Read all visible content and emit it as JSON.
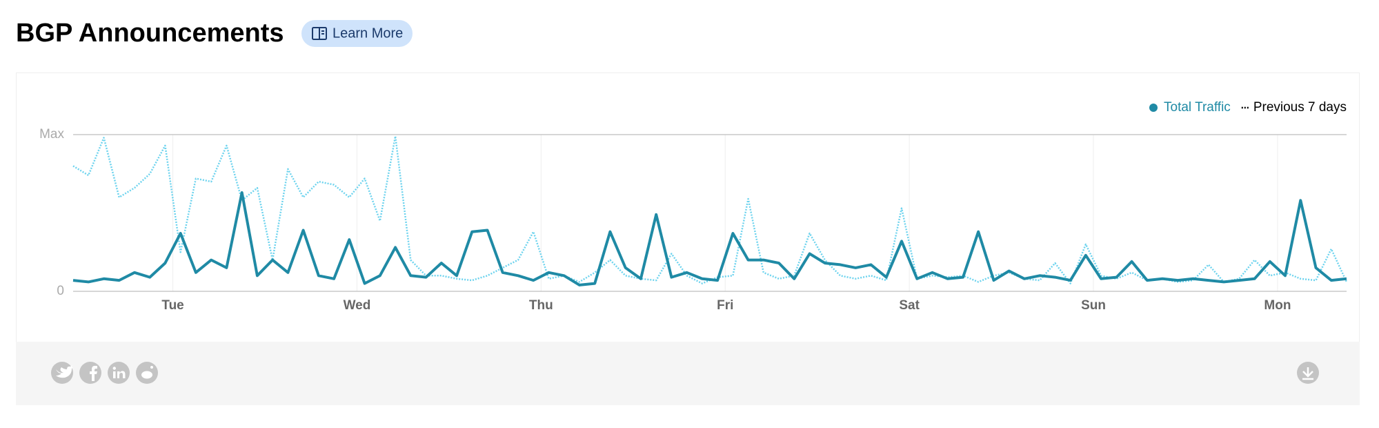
{
  "header": {
    "title": "BGP Announcements",
    "button": "Learn More"
  },
  "chart_data": {
    "type": "line",
    "x": [
      -13,
      -11,
      -9,
      -7,
      -5,
      -3,
      -1,
      1,
      3,
      5,
      7,
      9,
      11,
      13,
      15,
      17,
      19,
      21,
      23,
      25,
      27,
      29,
      31,
      33,
      35,
      37,
      39,
      41,
      43,
      45,
      47,
      49,
      51,
      53,
      55,
      57,
      59,
      61,
      63,
      65,
      67,
      69,
      71,
      73,
      75,
      77,
      79,
      81,
      83,
      85,
      87,
      89,
      91,
      93,
      95,
      97,
      99,
      101,
      103,
      105,
      107,
      109,
      111,
      113,
      115,
      117,
      119,
      121,
      123,
      125,
      127,
      129,
      131,
      133,
      135,
      137,
      139,
      141,
      143,
      145,
      147,
      149,
      151,
      153
    ],
    "xlim": [
      -13,
      153
    ],
    "xticks": [
      {
        "value": 0,
        "label": "Tue"
      },
      {
        "value": 24,
        "label": "Wed"
      },
      {
        "value": 48,
        "label": "Thu"
      },
      {
        "value": 72,
        "label": "Fri"
      },
      {
        "value": 96,
        "label": "Sat"
      },
      {
        "value": 120,
        "label": "Sun"
      },
      {
        "value": 144,
        "label": "Mon"
      }
    ],
    "ylim": [
      0,
      1
    ],
    "yticks": [
      0,
      {
        "value": 1,
        "label": "Max"
      }
    ],
    "grid": true,
    "legend": "top-right",
    "series": [
      {
        "name": "Total Traffic",
        "color": "#1f8aa5",
        "line_style": "solid",
        "values": [
          0.07,
          0.06,
          0.08,
          0.07,
          0.12,
          0.09,
          0.18,
          0.37,
          0.12,
          0.2,
          0.15,
          0.63,
          0.1,
          0.2,
          0.12,
          0.39,
          0.1,
          0.08,
          0.33,
          0.05,
          0.1,
          0.28,
          0.1,
          0.09,
          0.18,
          0.1,
          0.38,
          0.39,
          0.12,
          0.1,
          0.07,
          0.12,
          0.1,
          0.04,
          0.05,
          0.38,
          0.15,
          0.08,
          0.49,
          0.09,
          0.12,
          0.08,
          0.07,
          0.37,
          0.2,
          0.2,
          0.18,
          0.08,
          0.24,
          0.18,
          0.17,
          0.15,
          0.17,
          0.09,
          0.32,
          0.08,
          0.12,
          0.08,
          0.09,
          0.38,
          0.07,
          0.13,
          0.08,
          0.1,
          0.09,
          0.07,
          0.23,
          0.08,
          0.09,
          0.19,
          0.07,
          0.08,
          0.07,
          0.08,
          0.07,
          0.06,
          0.07,
          0.08,
          0.19,
          0.1,
          0.58,
          0.15,
          0.07,
          0.08
        ]
      },
      {
        "name": "Previous 7 days",
        "color": "#6dd3ee",
        "line_style": "dotted",
        "values": [
          0.8,
          0.74,
          0.98,
          0.6,
          0.66,
          0.75,
          0.93,
          0.25,
          0.72,
          0.7,
          0.93,
          0.58,
          0.66,
          0.2,
          0.78,
          0.6,
          0.7,
          0.68,
          0.6,
          0.72,
          0.45,
          0.99,
          0.2,
          0.1,
          0.1,
          0.08,
          0.07,
          0.1,
          0.15,
          0.2,
          0.38,
          0.08,
          0.1,
          0.06,
          0.12,
          0.2,
          0.1,
          0.08,
          0.07,
          0.24,
          0.1,
          0.05,
          0.09,
          0.1,
          0.59,
          0.12,
          0.08,
          0.1,
          0.37,
          0.2,
          0.1,
          0.08,
          0.1,
          0.07,
          0.53,
          0.08,
          0.1,
          0.09,
          0.1,
          0.06,
          0.1,
          0.12,
          0.08,
          0.07,
          0.18,
          0.05,
          0.3,
          0.1,
          0.08,
          0.12,
          0.07,
          0.08,
          0.06,
          0.07,
          0.17,
          0.06,
          0.08,
          0.2,
          0.1,
          0.12,
          0.08,
          0.07,
          0.27,
          0.06
        ]
      }
    ]
  }
}
